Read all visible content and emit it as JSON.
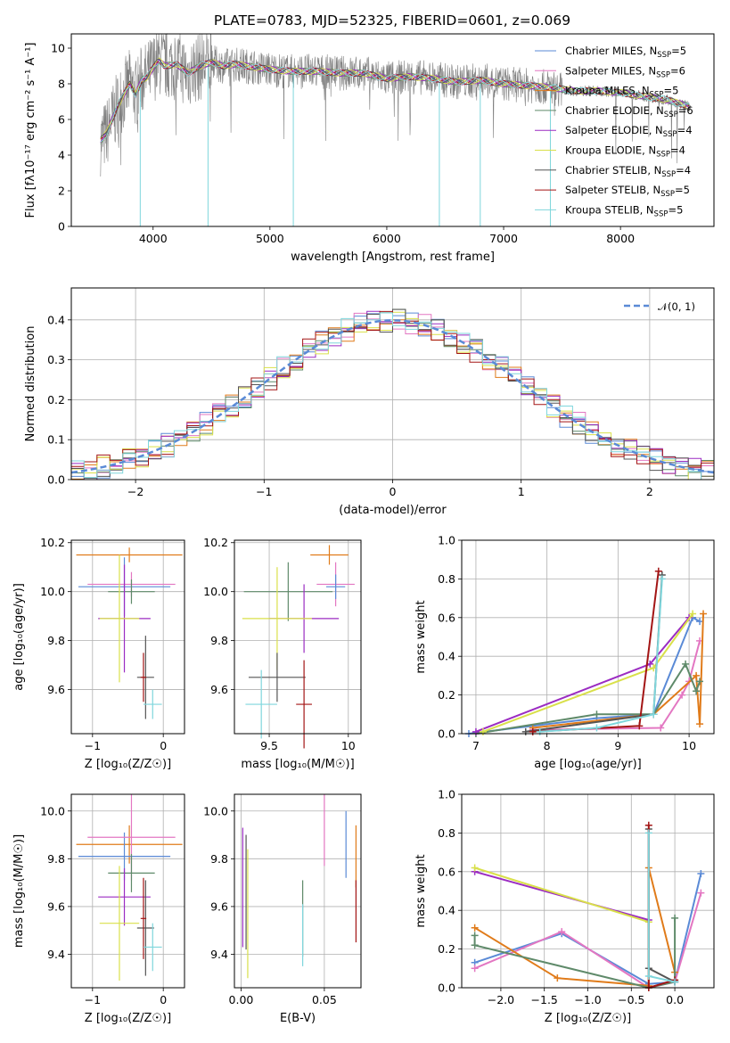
{
  "chart_data": [
    {
      "type": "line",
      "id": "spectrum",
      "title": "PLATE=0783, MJD=52325, FIBERID=0601, z=0.069",
      "xlabel": "wavelength [Angstrom, rest frame]",
      "ylabel": "Flux [fλ10⁻¹⁷ erg cm⁻² s⁻¹ A⁻¹]",
      "xlim": [
        3300,
        8800
      ],
      "ylim": [
        0,
        10.8
      ],
      "xticks": [
        4000,
        5000,
        6000,
        7000,
        8000
      ],
      "yticks": [
        0,
        2,
        4,
        6,
        8,
        10
      ],
      "continuum": {
        "x": [
          3550,
          3600,
          3700,
          3800,
          3850,
          3900,
          3950,
          4000,
          4050,
          4100,
          4200,
          4300,
          4400,
          4500,
          4600,
          4700,
          4800,
          4900,
          5000,
          5200,
          5400,
          5600,
          5800,
          6000,
          6200,
          6400,
          6600,
          6800,
          7000,
          7200,
          7400,
          7600,
          7800,
          8000,
          8200,
          8400,
          8600
        ],
        "y": [
          4.8,
          5.2,
          6.8,
          8.0,
          7.4,
          8.2,
          8.4,
          8.9,
          9.3,
          9.0,
          9.1,
          8.6,
          9.0,
          9.2,
          9.0,
          9.1,
          9.0,
          8.9,
          8.8,
          8.7,
          8.7,
          8.6,
          8.6,
          8.3,
          8.4,
          8.3,
          8.1,
          8.2,
          8.0,
          7.9,
          7.8,
          7.6,
          7.6,
          7.5,
          7.3,
          7.1,
          6.7
        ]
      },
      "dips": [
        {
          "x": 3890,
          "y": 0.0
        },
        {
          "x": 4470,
          "y": 0.0
        },
        {
          "x": 5200,
          "y": 0.0
        },
        {
          "x": 6450,
          "y": 0.0
        },
        {
          "x": 6800,
          "y": 0.0
        },
        {
          "x": 7400,
          "y": 0.0
        }
      ],
      "series": [
        {
          "name": "Chabrier MILES, N",
          "sub": "SSP",
          "nssp": "=5",
          "color": "#5a8ad6"
        },
        {
          "name": "Salpeter MILES, N",
          "sub": "SSP",
          "nssp": "=6",
          "color": "#e377c2"
        },
        {
          "name": "Kroupa MILES, N",
          "sub": "SSP",
          "nssp": "=5",
          "color": "#e07b1a"
        },
        {
          "name": "Chabrier ELODIE, N",
          "sub": "SSP",
          "nssp": "=6",
          "color": "#5f8a6a"
        },
        {
          "name": "Salpeter ELODIE, N",
          "sub": "SSP",
          "nssp": "=4",
          "color": "#9b2cc2"
        },
        {
          "name": "Kroupa ELODIE, N",
          "sub": "SSP",
          "nssp": "=4",
          "color": "#d9e04a"
        },
        {
          "name": "Chabrier STELIB, N",
          "sub": "SSP",
          "nssp": "=4",
          "color": "#555555"
        },
        {
          "name": "Salpeter STELIB, N",
          "sub": "SSP",
          "nssp": "=5",
          "color": "#a31515"
        },
        {
          "name": "Kroupa STELIB, N",
          "sub": "SSP",
          "nssp": "=5",
          "color": "#7fd6dc"
        }
      ],
      "legend": "top-right",
      "grid": false
    },
    {
      "type": "bar",
      "id": "residuals",
      "xlabel": "(data-model)/error",
      "ylabel": "Normed distribution",
      "xlim": [
        -2.5,
        2.5
      ],
      "ylim": [
        0,
        0.48
      ],
      "xticks": [
        -2,
        -1,
        0,
        1,
        2
      ],
      "yticks": [
        0.0,
        0.1,
        0.2,
        0.3,
        0.4
      ],
      "bin_width": 0.1,
      "reference_label": "𝒩(0, 1)",
      "reference_color": "#5a8ad6",
      "legend": "top-right",
      "grid": true
    },
    {
      "type": "scatter",
      "id": "age-vs-Z",
      "xlabel": "Z [log₁₀(Z/Z☉)]",
      "ylabel": "age  [log₁₀(age/yr)]",
      "xlim": [
        -1.3,
        0.3
      ],
      "ylim": [
        9.42,
        10.21
      ],
      "xticks": [
        -1,
        0
      ],
      "yticks": [
        9.6,
        9.8,
        10.0,
        10.2
      ],
      "points": [
        {
          "x": -0.48,
          "y": 10.15,
          "xe": 0.75,
          "ye": 0.03,
          "c": "#e07b1a"
        },
        {
          "x": -0.55,
          "y": 10.02,
          "xe": 0.65,
          "ye": 0.12,
          "c": "#5a8ad6"
        },
        {
          "x": -0.45,
          "y": 10.03,
          "xe": 0.62,
          "ye": 0.05,
          "c": "#e377c2"
        },
        {
          "x": -0.45,
          "y": 10.0,
          "xe": 0.33,
          "ye": 0.05,
          "c": "#5f8a6a"
        },
        {
          "x": -0.55,
          "y": 9.89,
          "xe": 0.37,
          "ye": 0.22,
          "c": "#9b2cc2"
        },
        {
          "x": -0.62,
          "y": 9.89,
          "xe": 0.28,
          "ye": 0.26,
          "c": "#d9e04a"
        },
        {
          "x": -0.25,
          "y": 9.65,
          "xe": 0.12,
          "ye": 0.17,
          "c": "#555555"
        },
        {
          "x": -0.28,
          "y": 9.65,
          "xe": 0.04,
          "ye": 0.1,
          "c": "#a31515"
        },
        {
          "x": -0.15,
          "y": 9.54,
          "xe": 0.13,
          "ye": 0.06,
          "c": "#7fd6dc"
        }
      ],
      "grid": true
    },
    {
      "type": "scatter",
      "id": "age-vs-mass",
      "xlabel": "mass [log₁₀(M/M☉)]",
      "ylabel": "",
      "xlim": [
        9.28,
        10.08
      ],
      "ylim": [
        9.42,
        10.21
      ],
      "xticks": [
        9.5,
        10.0
      ],
      "yticks": [
        9.6,
        9.8,
        10.0,
        10.2
      ],
      "points": [
        {
          "x": 9.88,
          "y": 10.15,
          "xe": 0.12,
          "ye": 0.04,
          "c": "#e07b1a"
        },
        {
          "x": 9.92,
          "y": 10.03,
          "xe": 0.12,
          "ye": 0.09,
          "c": "#e377c2"
        },
        {
          "x": 9.92,
          "y": 10.02,
          "xe": 0.06,
          "ye": 0.05,
          "c": "#5a8ad6"
        },
        {
          "x": 9.62,
          "y": 10.0,
          "xe": 0.28,
          "ye": 0.12,
          "c": "#5f8a6a"
        },
        {
          "x": 9.72,
          "y": 9.89,
          "xe": 0.22,
          "ye": 0.14,
          "c": "#9b2cc2"
        },
        {
          "x": 9.55,
          "y": 9.89,
          "xe": 0.22,
          "ye": 0.21,
          "c": "#d9e04a"
        },
        {
          "x": 9.55,
          "y": 9.65,
          "xe": 0.18,
          "ye": 0.1,
          "c": "#555555"
        },
        {
          "x": 9.72,
          "y": 9.54,
          "xe": 0.05,
          "ye": 0.18,
          "c": "#a31515"
        },
        {
          "x": 9.45,
          "y": 9.54,
          "xe": 0.1,
          "ye": 0.14,
          "c": "#7fd6dc"
        }
      ],
      "grid": true
    },
    {
      "type": "line",
      "id": "mass-weight-vs-age",
      "xlabel": "age  [log₁₀(age/yr)]",
      "ylabel": "mass weight",
      "xlim": [
        6.8,
        10.35
      ],
      "ylim": [
        0,
        1.0
      ],
      "xticks": [
        7,
        8,
        9,
        10
      ],
      "yticks": [
        0.0,
        0.2,
        0.4,
        0.6,
        0.8,
        1.0
      ],
      "series": [
        {
          "c": "#5a8ad6",
          "x": [
            6.9,
            8.7,
            9.5,
            10.05,
            10.15
          ],
          "y": [
            0.0,
            0.08,
            0.1,
            0.6,
            0.58
          ]
        },
        {
          "c": "#e377c2",
          "x": [
            7.8,
            9.6,
            9.9,
            10.0,
            10.15
          ],
          "y": [
            0.02,
            0.03,
            0.2,
            0.27,
            0.48
          ]
        },
        {
          "c": "#e07b1a",
          "x": [
            7.8,
            9.5,
            10.1,
            10.15,
            10.2
          ],
          "y": [
            0.03,
            0.1,
            0.3,
            0.05,
            0.62
          ]
        },
        {
          "c": "#5f8a6a",
          "x": [
            7.0,
            8.7,
            9.5,
            9.95,
            10.1,
            10.15
          ],
          "y": [
            0.0,
            0.1,
            0.1,
            0.36,
            0.22,
            0.27
          ]
        },
        {
          "c": "#9b2cc2",
          "x": [
            7.0,
            9.45,
            10.0
          ],
          "y": [
            0.01,
            0.36,
            0.6
          ]
        },
        {
          "c": "#d9e04a",
          "x": [
            7.1,
            9.5,
            10.05
          ],
          "y": [
            0.01,
            0.34,
            0.62
          ]
        },
        {
          "c": "#555555",
          "x": [
            7.7,
            9.5,
            9.62
          ],
          "y": [
            0.01,
            0.1,
            0.82
          ]
        },
        {
          "c": "#a31515",
          "x": [
            7.8,
            9.3,
            9.57
          ],
          "y": [
            0.01,
            0.04,
            0.84
          ]
        },
        {
          "c": "#7fd6dc",
          "x": [
            7.9,
            8.7,
            9.5,
            9.62
          ],
          "y": [
            0.01,
            0.03,
            0.1,
            0.8
          ]
        }
      ],
      "grid": true
    },
    {
      "type": "scatter",
      "id": "mass-vs-Z",
      "xlabel": "Z [log₁₀(Z/Z☉)]",
      "ylabel": "mass [log₁₀(M/M☉)]",
      "xlim": [
        -1.3,
        0.3
      ],
      "ylim": [
        9.26,
        10.07
      ],
      "xticks": [
        -1,
        0
      ],
      "yticks": [
        9.4,
        9.6,
        9.8,
        10.0
      ],
      "points": [
        {
          "x": -0.48,
          "y": 9.86,
          "xe": 0.75,
          "ye": 0.08,
          "c": "#e07b1a"
        },
        {
          "x": -0.55,
          "y": 9.81,
          "xe": 0.65,
          "ye": 0.1,
          "c": "#5a8ad6"
        },
        {
          "x": -0.45,
          "y": 9.89,
          "xe": 0.62,
          "ye": 0.18,
          "c": "#e377c2"
        },
        {
          "x": -0.45,
          "y": 9.74,
          "xe": 0.33,
          "ye": 0.08,
          "c": "#5f8a6a"
        },
        {
          "x": -0.55,
          "y": 9.64,
          "xe": 0.37,
          "ye": 0.12,
          "c": "#9b2cc2"
        },
        {
          "x": -0.62,
          "y": 9.53,
          "xe": 0.28,
          "ye": 0.24,
          "c": "#d9e04a"
        },
        {
          "x": -0.25,
          "y": 9.51,
          "xe": 0.12,
          "ye": 0.2,
          "c": "#555555"
        },
        {
          "x": -0.28,
          "y": 9.55,
          "xe": 0.04,
          "ye": 0.17,
          "c": "#a31515"
        },
        {
          "x": -0.15,
          "y": 9.43,
          "xe": 0.13,
          "ye": 0.1,
          "c": "#7fd6dc"
        }
      ],
      "grid": true
    },
    {
      "type": "scatter",
      "id": "mass-vs-EBV",
      "xlabel": "E(B-V)",
      "ylabel": "",
      "xlim": [
        -0.004,
        0.072
      ],
      "ylim": [
        9.26,
        10.07
      ],
      "xticks": [
        0.0,
        0.05
      ],
      "xtick_labels": [
        "0.00",
        "0.05"
      ],
      "yticks": [
        9.4,
        9.6,
        9.8,
        10.0
      ],
      "points": [
        {
          "x": 0.003,
          "y": 9.66,
          "ye": 0.24,
          "c": "#555555"
        },
        {
          "x": 0.001,
          "y": 9.68,
          "ye": 0.25,
          "c": "#9b2cc2"
        },
        {
          "x": 0.004,
          "y": 9.57,
          "ye": 0.27,
          "c": "#d9e04a"
        },
        {
          "x": 0.037,
          "y": 9.55,
          "ye": 0.16,
          "c": "#5f8a6a"
        },
        {
          "x": 0.037,
          "y": 9.48,
          "ye": 0.13,
          "c": "#7fd6dc"
        },
        {
          "x": 0.05,
          "y": 9.92,
          "ye": 0.15,
          "c": "#e377c2"
        },
        {
          "x": 0.063,
          "y": 9.86,
          "ye": 0.14,
          "c": "#5a8ad6"
        },
        {
          "x": 0.069,
          "y": 9.81,
          "ye": 0.13,
          "c": "#e07b1a"
        },
        {
          "x": 0.069,
          "y": 9.58,
          "ye": 0.13,
          "c": "#a31515"
        }
      ],
      "grid": true
    },
    {
      "type": "line",
      "id": "mass-weight-vs-Z",
      "xlabel": "Z [log₁₀(Z/Z☉)]",
      "ylabel": "mass weight",
      "xlim": [
        -2.45,
        0.45
      ],
      "ylim": [
        0,
        1.0
      ],
      "xticks": [
        -2.0,
        -1.5,
        -1.0,
        -0.5,
        0.0
      ],
      "xtick_labels": [
        "−2.0",
        "−1.5",
        "−1.0",
        "−0.5",
        "0.0"
      ],
      "yticks": [
        0.0,
        0.2,
        0.4,
        0.6,
        0.8,
        1.0
      ],
      "series": [
        {
          "c": "#5a8ad6",
          "x": [
            -2.3,
            -1.3,
            -0.3,
            0.0,
            0.3
          ],
          "y": [
            0.13,
            0.28,
            0.02,
            0.03,
            0.59
          ]
        },
        {
          "c": "#e377c2",
          "x": [
            -2.3,
            -1.3,
            -0.3,
            0.0,
            0.3
          ],
          "y": [
            0.1,
            0.29,
            0.0,
            0.03,
            0.49
          ]
        },
        {
          "c": "#e07b1a",
          "x": [
            -2.3,
            -1.35,
            -0.3,
            -0.3,
            0.0
          ],
          "y": [
            0.31,
            0.05,
            0.01,
            0.62,
            0.08
          ]
        },
        {
          "c": "#5f8a6a",
          "x": [
            -2.3,
            -2.3,
            -0.3,
            0.0,
            0.0
          ],
          "y": [
            0.27,
            0.22,
            0.0,
            0.03,
            0.36
          ]
        },
        {
          "c": "#9b2cc2",
          "x": [
            -2.3,
            -0.3
          ],
          "y": [
            0.6,
            0.35
          ]
        },
        {
          "c": "#d9e04a",
          "x": [
            -2.3,
            -0.3
          ],
          "y": [
            0.62,
            0.34
          ]
        },
        {
          "c": "#555555",
          "x": [
            -0.3,
            -0.3,
            0.0
          ],
          "y": [
            0.82,
            0.1,
            0.03
          ]
        },
        {
          "c": "#a31515",
          "x": [
            -0.3,
            -0.3,
            0.0
          ],
          "y": [
            0.84,
            0.0,
            0.04
          ]
        },
        {
          "c": "#7fd6dc",
          "x": [
            -0.3,
            -0.3,
            0.0
          ],
          "y": [
            0.8,
            0.06,
            0.03
          ]
        }
      ],
      "grid": true
    }
  ]
}
